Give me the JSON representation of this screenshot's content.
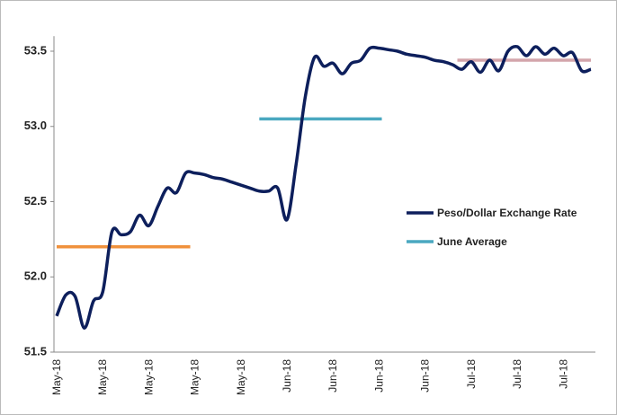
{
  "chart_data": {
    "type": "line",
    "categories": [
      "May-18",
      null,
      null,
      null,
      null,
      "May-18",
      null,
      null,
      null,
      null,
      "May-18",
      null,
      null,
      null,
      null,
      "May-18",
      null,
      null,
      null,
      null,
      "May-18",
      null,
      null,
      null,
      null,
      "Jun-18",
      null,
      null,
      null,
      null,
      "Jun-18",
      null,
      null,
      null,
      null,
      "Jun-18",
      null,
      null,
      null,
      null,
      "Jun-18",
      null,
      null,
      null,
      null,
      "Jul-18",
      null,
      null,
      null,
      null,
      "Jul-18",
      null,
      null,
      null,
      null,
      "Jul-18",
      null,
      null,
      null
    ],
    "series": [
      {
        "name": "Peso/Dollar Exchange Rate",
        "color": "#0d1f5c",
        "values": [
          51.74,
          51.88,
          51.87,
          51.66,
          51.84,
          51.9,
          52.3,
          52.28,
          52.3,
          52.41,
          52.34,
          52.47,
          52.59,
          52.56,
          52.69,
          52.69,
          52.68,
          52.66,
          52.65,
          52.63,
          52.61,
          52.59,
          52.57,
          52.57,
          52.59,
          52.38,
          52.75,
          53.2,
          53.46,
          53.4,
          53.42,
          53.35,
          53.42,
          53.44,
          53.52,
          53.52,
          53.51,
          53.5,
          53.48,
          53.47,
          53.46,
          53.44,
          53.43,
          53.41,
          53.38,
          53.43,
          53.36,
          53.44,
          53.37,
          53.5,
          53.53,
          53.47,
          53.53,
          53.48,
          53.52,
          53.47,
          53.49,
          53.37,
          53.38
        ]
      }
    ],
    "reference_lines": [
      {
        "value": 52.2,
        "color": "#f0913c",
        "from": 0,
        "to": 14.5
      },
      {
        "name": "June Average",
        "value": 53.05,
        "color": "#4aa8c0",
        "from": 22,
        "to": 35.3
      },
      {
        "value": 53.44,
        "color": "#d4a5ab",
        "from": 43.5,
        "to": 58
      }
    ],
    "ylim": [
      51.5,
      53.6
    ],
    "yticks": [
      {
        "value": 51.5,
        "label": "51.5"
      },
      {
        "value": 52.0,
        "label": "52.0"
      },
      {
        "value": 52.5,
        "label": "52.5"
      },
      {
        "value": 53.0,
        "label": "53.0"
      },
      {
        "value": 53.5,
        "label": "53.5"
      }
    ]
  }
}
